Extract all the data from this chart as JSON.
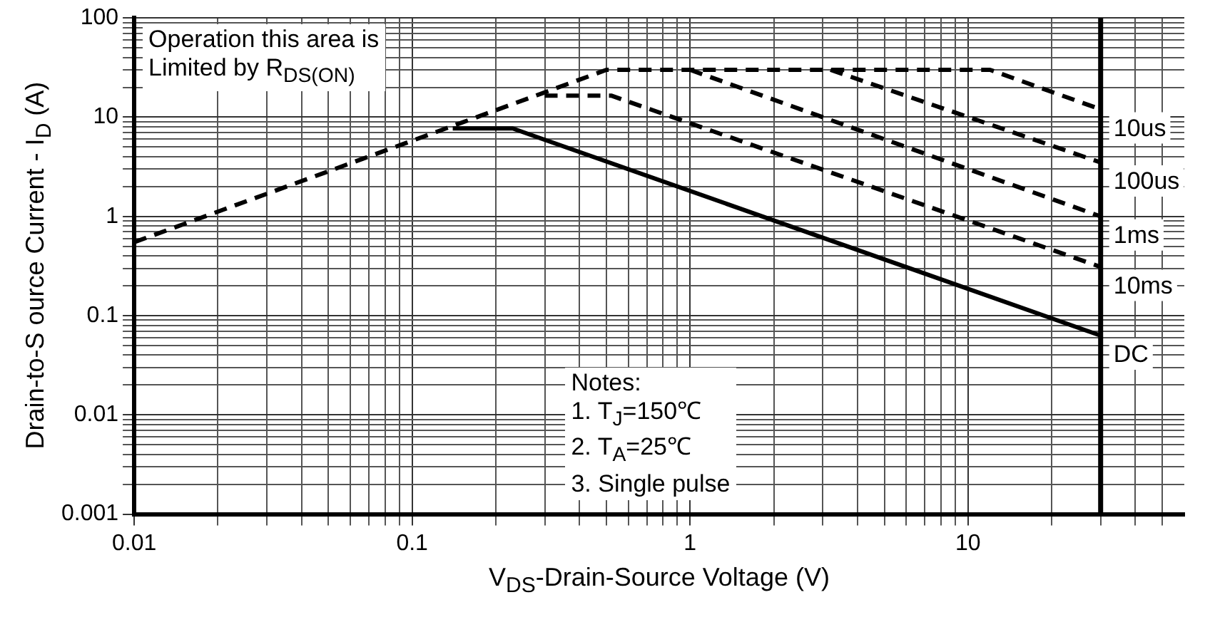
{
  "chart_data": {
    "type": "line",
    "xlabel": "V$_{DS}$-Drain-Source Voltage (V)",
    "ylabel": "Drain-to-S ource Current - I$_{D}$ (A)",
    "log": "xy",
    "grid": true,
    "legend": false,
    "marker": "none",
    "xlim": [
      0.01,
      60
    ],
    "xticks": [
      0.01,
      0.1,
      1,
      10
    ],
    "ylim": [
      0.001,
      100
    ],
    "yticks": [
      0.001,
      0.01,
      0.1,
      1,
      10,
      100
    ],
    "annotations": [
      "Operation this area is\nLimited  by R$_{DS(ON)}$",
      "Notes:\n1. T$_{J}$=150℃\n2. T$_{A}$=25℃\n3. Single pulse"
    ],
    "ref_lines": [
      {
        "axis": "x",
        "value": 30,
        "color": "#000000",
        "line_style": "solid"
      }
    ],
    "series": [
      {
        "name": "10us",
        "color": "#000000",
        "line_style": "dashed",
        "x": [
          0.01,
          0.5,
          12,
          30
        ],
        "values": [
          0.55,
          30,
          30,
          12
        ]
      },
      {
        "name": "100us",
        "color": "#000000",
        "line_style": "dashed",
        "x": [
          3.2,
          30
        ],
        "values": [
          30,
          3.5
        ]
      },
      {
        "name": "1ms",
        "color": "#000000",
        "line_style": "dashed",
        "x": [
          1,
          30
        ],
        "values": [
          30,
          1
        ]
      },
      {
        "name": "10ms",
        "color": "#000000",
        "line_style": "dashed",
        "x": [
          0.3,
          0.52,
          30
        ],
        "values": [
          16.5,
          16.5,
          0.31
        ]
      },
      {
        "name": "DC",
        "color": "#000000",
        "line_style": "solid",
        "x": [
          0.14,
          0.23,
          30
        ],
        "values": [
          7.7,
          7.7,
          0.063
        ]
      }
    ]
  }
}
